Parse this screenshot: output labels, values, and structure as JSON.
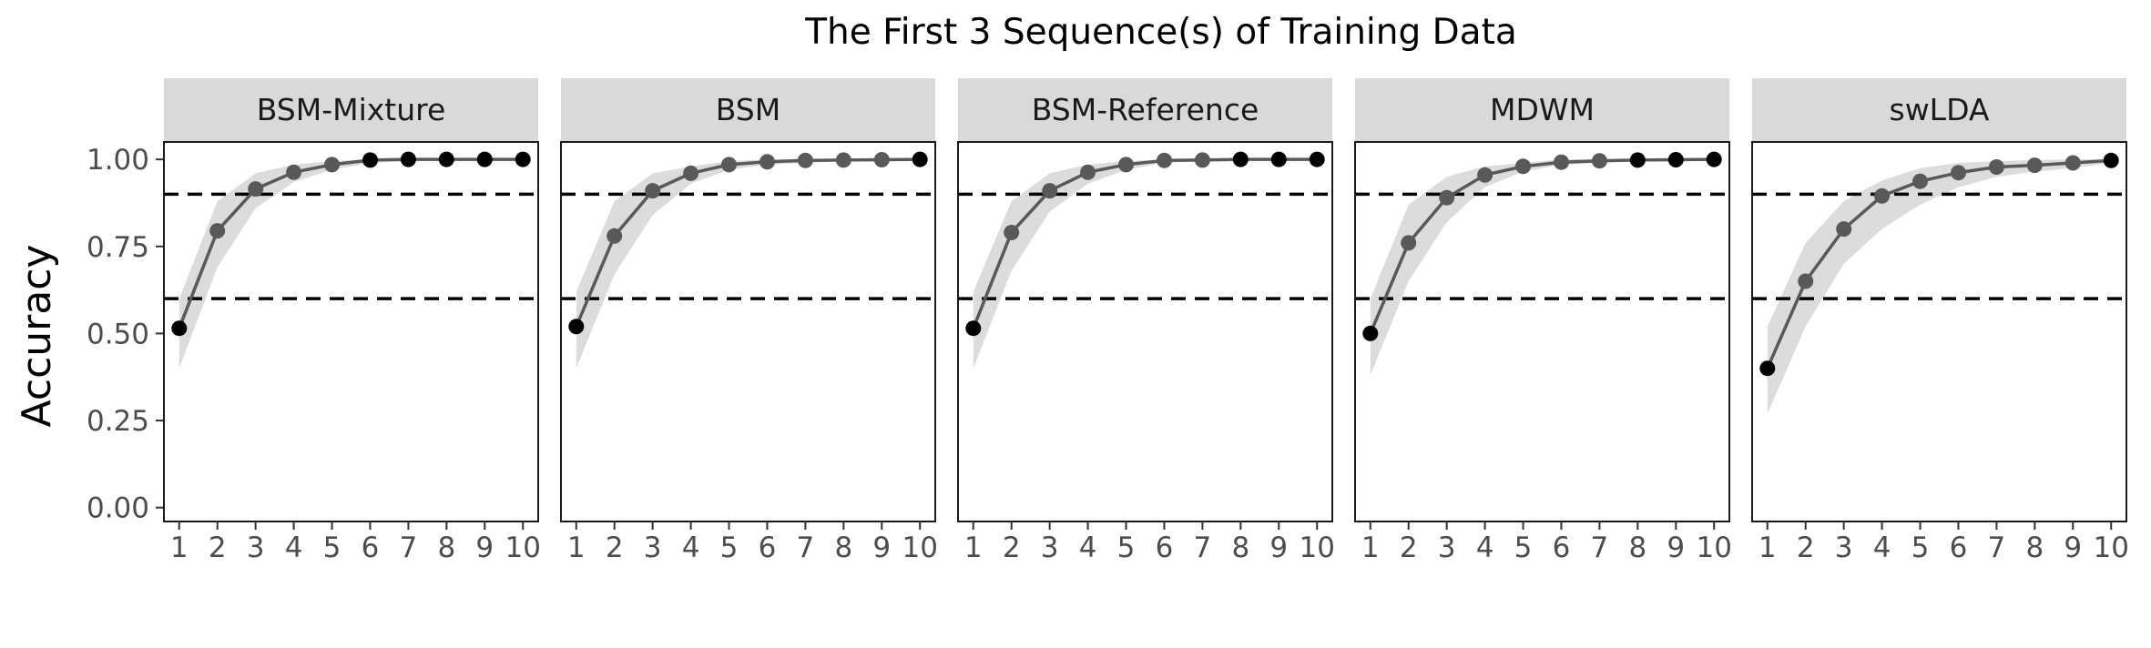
{
  "chart_data": {
    "type": "line",
    "title": "The First 3 Sequence(s) of Training Data",
    "xlabel": "",
    "ylabel": "Accuracy",
    "x": [
      1,
      2,
      3,
      4,
      5,
      6,
      7,
      8,
      9,
      10
    ],
    "x_tick_labels": [
      "1",
      "2",
      "3",
      "4",
      "5",
      "6",
      "7",
      "8",
      "9",
      "10"
    ],
    "ylim": [
      -0.04,
      1.05
    ],
    "y_ticks": [
      0.0,
      0.25,
      0.5,
      0.75,
      1.0
    ],
    "y_tick_labels": [
      "0.00",
      "0.25",
      "0.50",
      "0.75",
      "1.00"
    ],
    "reference_lines": [
      0.6,
      0.9
    ],
    "grid": false,
    "legend": "none",
    "colors": {
      "line": "#595959",
      "band": "#dcdcdc",
      "point_gray": "#595959",
      "point_black": "#000000",
      "strip": "#d9d9d9",
      "ref_line": "#000000",
      "tick_text": "#4d4d4d"
    },
    "panels": [
      {
        "name": "BSM-Mixture",
        "values": [
          0.515,
          0.795,
          0.915,
          0.963,
          0.985,
          0.998,
          1.0,
          1.0,
          1.0,
          1.0
        ],
        "lower": [
          0.4,
          0.69,
          0.86,
          0.935,
          0.97,
          0.99,
          0.995,
          1.0,
          1.0,
          1.0
        ],
        "upper": [
          0.6,
          0.88,
          0.96,
          0.985,
          0.995,
          1.0,
          1.0,
          1.0,
          1.0,
          1.0
        ],
        "point_colors": [
          "black",
          "gray",
          "gray",
          "gray",
          "gray",
          "black",
          "black",
          "black",
          "black",
          "black"
        ]
      },
      {
        "name": "BSM",
        "values": [
          0.52,
          0.78,
          0.91,
          0.96,
          0.985,
          0.993,
          0.997,
          0.998,
          0.999,
          1.0
        ],
        "lower": [
          0.4,
          0.67,
          0.84,
          0.93,
          0.97,
          0.985,
          0.99,
          0.995,
          0.998,
          1.0
        ],
        "upper": [
          0.62,
          0.88,
          0.96,
          0.98,
          0.995,
          1.0,
          1.0,
          1.0,
          1.0,
          1.0
        ],
        "point_colors": [
          "black",
          "gray",
          "gray",
          "gray",
          "gray",
          "gray",
          "gray",
          "gray",
          "gray",
          "black"
        ]
      },
      {
        "name": "BSM-Reference",
        "values": [
          0.515,
          0.79,
          0.91,
          0.963,
          0.985,
          0.997,
          0.998,
          1.0,
          1.0,
          1.0
        ],
        "lower": [
          0.4,
          0.68,
          0.85,
          0.93,
          0.97,
          0.99,
          0.995,
          1.0,
          1.0,
          1.0
        ],
        "upper": [
          0.62,
          0.88,
          0.96,
          0.985,
          0.995,
          1.0,
          1.0,
          1.0,
          1.0,
          1.0
        ],
        "point_colors": [
          "black",
          "gray",
          "gray",
          "gray",
          "gray",
          "gray",
          "gray",
          "black",
          "black",
          "black"
        ]
      },
      {
        "name": "MDWM",
        "values": [
          0.5,
          0.76,
          0.89,
          0.955,
          0.98,
          0.992,
          0.996,
          0.998,
          0.999,
          1.0
        ],
        "lower": [
          0.38,
          0.65,
          0.82,
          0.92,
          0.965,
          0.985,
          0.99,
          0.995,
          0.998,
          1.0
        ],
        "upper": [
          0.6,
          0.87,
          0.95,
          0.98,
          0.99,
          1.0,
          1.0,
          1.0,
          1.0,
          1.0
        ],
        "point_colors": [
          "black",
          "gray",
          "gray",
          "gray",
          "gray",
          "gray",
          "gray",
          "black",
          "black",
          "black"
        ]
      },
      {
        "name": "swLDA",
        "values": [
          0.4,
          0.65,
          0.8,
          0.895,
          0.937,
          0.962,
          0.978,
          0.983,
          0.99,
          0.997
        ],
        "lower": [
          0.27,
          0.52,
          0.7,
          0.8,
          0.87,
          0.92,
          0.95,
          0.965,
          0.975,
          0.99
        ],
        "upper": [
          0.52,
          0.76,
          0.88,
          0.94,
          0.975,
          0.99,
          0.995,
          0.998,
          1.0,
          1.0
        ],
        "point_colors": [
          "black",
          "gray",
          "gray",
          "gray",
          "gray",
          "gray",
          "gray",
          "gray",
          "gray",
          "black"
        ]
      }
    ]
  }
}
